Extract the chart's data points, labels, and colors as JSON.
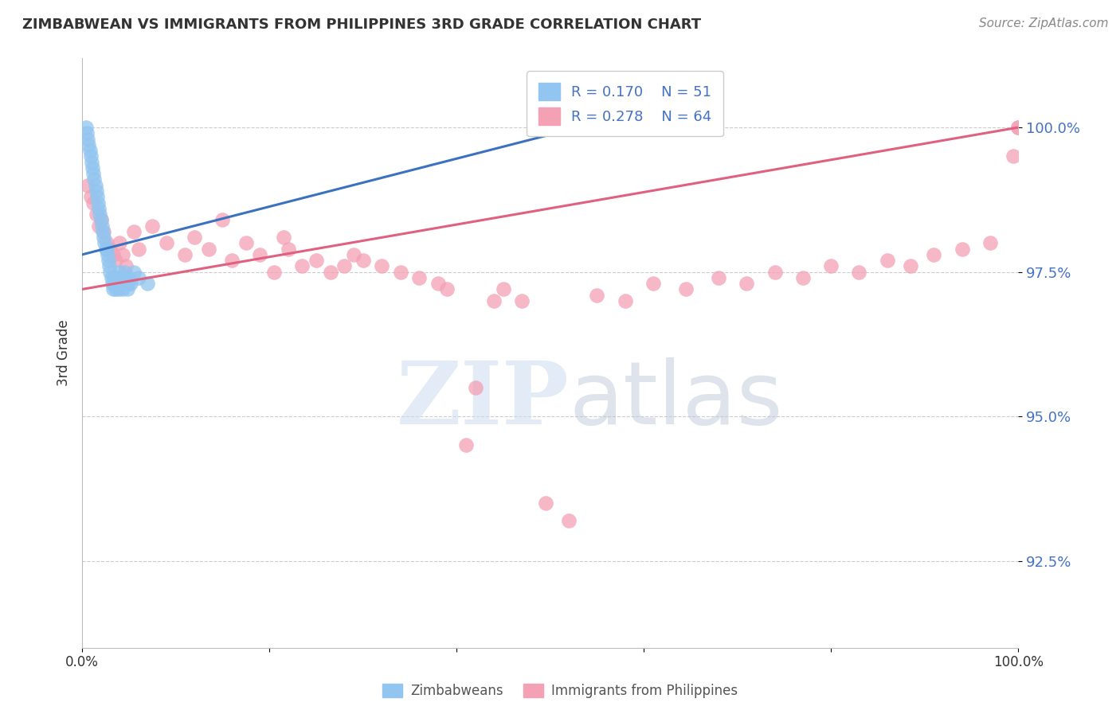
{
  "title": "ZIMBABWEAN VS IMMIGRANTS FROM PHILIPPINES 3RD GRADE CORRELATION CHART",
  "source": "Source: ZipAtlas.com",
  "ylabel": "3rd Grade",
  "y_tick_values": [
    92.5,
    95.0,
    97.5,
    100.0
  ],
  "xlim": [
    0.0,
    100.0
  ],
  "ylim": [
    91.0,
    101.2
  ],
  "legend_r1": "R = 0.170",
  "legend_n1": "N = 51",
  "legend_r2": "R = 0.278",
  "legend_n2": "N = 64",
  "blue_color": "#92C5F0",
  "pink_color": "#F4A0B5",
  "blue_line_color": "#3A72C0",
  "pink_line_color": "#E06080",
  "blue_scatter_x": [
    0.4,
    0.5,
    0.6,
    0.7,
    0.8,
    0.9,
    1.0,
    1.1,
    1.2,
    1.3,
    1.4,
    1.5,
    1.6,
    1.7,
    1.8,
    1.9,
    2.0,
    2.1,
    2.2,
    2.3,
    2.4,
    2.5,
    2.6,
    2.7,
    2.8,
    2.9,
    3.0,
    3.1,
    3.2,
    3.3,
    3.4,
    3.5,
    3.6,
    3.7,
    3.8,
    3.9,
    4.0,
    4.1,
    4.2,
    4.3,
    4.4,
    4.5,
    4.6,
    4.7,
    4.8,
    4.9,
    5.0,
    5.2,
    5.5,
    6.0,
    7.0
  ],
  "blue_scatter_y": [
    100.0,
    99.9,
    99.8,
    99.7,
    99.6,
    99.5,
    99.4,
    99.3,
    99.2,
    99.1,
    99.0,
    98.9,
    98.8,
    98.7,
    98.6,
    98.5,
    98.4,
    98.3,
    98.2,
    98.1,
    98.0,
    97.9,
    97.9,
    97.8,
    97.7,
    97.6,
    97.5,
    97.4,
    97.3,
    97.2,
    97.4,
    97.3,
    97.2,
    97.4,
    97.3,
    97.2,
    97.5,
    97.4,
    97.3,
    97.2,
    97.4,
    97.5,
    97.3,
    97.4,
    97.2,
    97.3,
    97.4,
    97.3,
    97.5,
    97.4,
    97.3
  ],
  "pink_scatter_x": [
    0.6,
    0.9,
    1.2,
    1.5,
    1.8,
    2.0,
    2.3,
    2.6,
    3.0,
    3.3,
    3.6,
    4.0,
    4.3,
    4.7,
    5.5,
    6.0,
    7.5,
    9.0,
    11.0,
    12.0,
    13.5,
    15.0,
    16.0,
    17.5,
    19.0,
    20.5,
    21.5,
    22.0,
    23.5,
    25.0,
    26.5,
    28.0,
    29.0,
    30.0,
    32.0,
    34.0,
    36.0,
    38.0,
    39.0,
    41.0,
    42.0,
    44.0,
    45.0,
    47.0,
    49.5,
    52.0,
    55.0,
    58.0,
    61.0,
    64.5,
    68.0,
    71.0,
    74.0,
    77.0,
    80.0,
    83.0,
    86.0,
    88.5,
    91.0,
    94.0,
    97.0,
    99.5,
    100.0,
    100.0
  ],
  "pink_scatter_y": [
    99.0,
    98.8,
    98.7,
    98.5,
    98.3,
    98.4,
    98.2,
    98.0,
    97.9,
    97.8,
    97.7,
    98.0,
    97.8,
    97.6,
    98.2,
    97.9,
    98.3,
    98.0,
    97.8,
    98.1,
    97.9,
    98.4,
    97.7,
    98.0,
    97.8,
    97.5,
    98.1,
    97.9,
    97.6,
    97.7,
    97.5,
    97.6,
    97.8,
    97.7,
    97.6,
    97.5,
    97.4,
    97.3,
    97.2,
    94.5,
    95.5,
    97.0,
    97.2,
    97.0,
    93.5,
    93.2,
    97.1,
    97.0,
    97.3,
    97.2,
    97.4,
    97.3,
    97.5,
    97.4,
    97.6,
    97.5,
    97.7,
    97.6,
    97.8,
    97.9,
    98.0,
    99.5,
    100.0,
    100.0
  ],
  "blue_trendline_x": [
    0.0,
    53.0
  ],
  "blue_trendline_y": [
    97.8,
    100.0
  ],
  "pink_trendline_x": [
    0.0,
    100.0
  ],
  "pink_trendline_y": [
    97.2,
    100.0
  ],
  "watermark_zip": "ZIP",
  "watermark_atlas": "atlas",
  "background_color": "#ffffff",
  "grid_color": "#cccccc"
}
